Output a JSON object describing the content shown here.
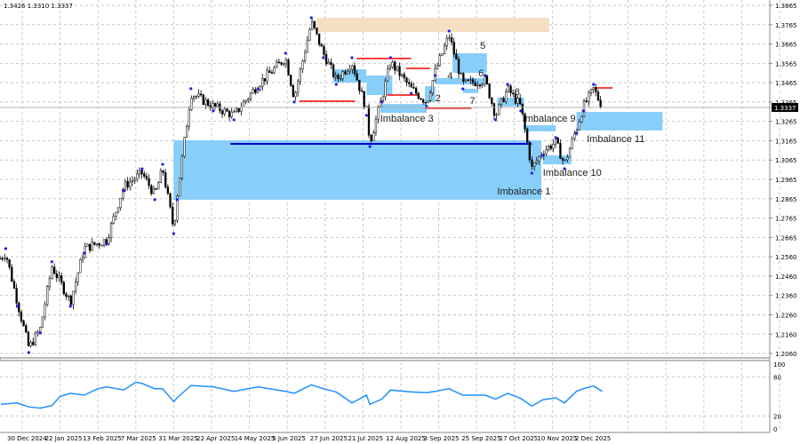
{
  "header": {
    "ohlc_text": "1.3426 1.3310 1.3337"
  },
  "chart_data": {
    "type": "candlestick",
    "current_price": "1.3337",
    "colors": {
      "candle": "#000000",
      "zone_blue": "#87cefa",
      "zone_tan": "#f5dfc2",
      "line_blue": "#0000cd",
      "line_red": "#ff0000",
      "fractal": "#1e1ee6",
      "indicator": "#1e90ff",
      "grid": "#c8c8c8"
    },
    "y_ticks": [
      "1.3865",
      "1.3765",
      "1.3665",
      "1.3565",
      "1.3465",
      "1.3365",
      "1.3265",
      "1.3165",
      "1.3065",
      "1.2965",
      "1.2865",
      "1.2765",
      "1.2665",
      "1.2560",
      "1.2460",
      "1.2360",
      "1.2260",
      "1.2160",
      "1.2060"
    ],
    "y_range": [
      1.206,
      1.3865
    ],
    "x_ticks": [
      {
        "label": "30 Dec 2024",
        "date": "2024-12-30"
      },
      {
        "label": "22 Jan 2025",
        "date": "2025-01-22"
      },
      {
        "label": "13 Feb 2025",
        "date": "2025-02-13"
      },
      {
        "label": "7 Mar 2025",
        "date": "2025-03-07"
      },
      {
        "label": "31 Mar 2025",
        "date": "2025-03-31"
      },
      {
        "label": "22 Apr 2025",
        "date": "2025-04-22"
      },
      {
        "label": "14 May 2025",
        "date": "2025-05-14"
      },
      {
        "label": "5 Jun 2025",
        "date": "2025-06-05"
      },
      {
        "label": "27 Jun 2025",
        "date": "2025-06-27"
      },
      {
        "label": "21 Jul 2025",
        "date": "2025-07-21"
      },
      {
        "label": "12 Aug 2025",
        "date": "2025-08-12"
      },
      {
        "label": "3 Sep 2025",
        "date": "2025-09-03"
      },
      {
        "label": "25 Sep 2025",
        "date": "2025-09-25"
      },
      {
        "label": "17 Oct 2025",
        "date": "2025-10-17"
      },
      {
        "label": "10 Nov 2025",
        "date": "2025-11-10"
      },
      {
        "label": "2 Dec 2025",
        "date": "2025-12-02"
      }
    ],
    "grid": true,
    "price_swings": [
      [
        "2024-12-17",
        1.2561
      ],
      [
        "2024-12-20",
        1.2584
      ],
      [
        "2024-12-27",
        1.2332
      ],
      [
        "2025-01-03",
        1.2093
      ],
      [
        "2025-01-10",
        1.2194
      ],
      [
        "2025-01-17",
        1.2516
      ],
      [
        "2025-01-28",
        1.2332
      ],
      [
        "2025-02-05",
        1.2607
      ],
      [
        "2025-02-18",
        1.2653
      ],
      [
        "2025-02-28",
        1.2929
      ],
      [
        "2025-03-11",
        1.2997
      ],
      [
        "2025-03-19",
        1.2883
      ],
      [
        "2025-03-24",
        1.302
      ],
      [
        "2025-03-31",
        1.2708
      ],
      [
        "2025-04-02",
        1.2883
      ],
      [
        "2025-04-10",
        1.3411
      ],
      [
        "2025-04-23",
        1.3342
      ],
      [
        "2025-05-05",
        1.3296
      ],
      [
        "2025-05-19",
        1.3456
      ],
      [
        "2025-06-04",
        1.3594
      ],
      [
        "2025-06-09",
        1.3388
      ],
      [
        "2025-06-19",
        1.3778
      ],
      [
        "2025-06-26",
        1.3617
      ],
      [
        "2025-07-04",
        1.3479
      ],
      [
        "2025-07-14",
        1.3571
      ],
      [
        "2025-07-23",
        1.3319
      ],
      [
        "2025-07-25",
        1.3158
      ],
      [
        "2025-08-01",
        1.3388
      ],
      [
        "2025-08-06",
        1.3571
      ],
      [
        "2025-08-18",
        1.3433
      ],
      [
        "2025-08-27",
        1.3365
      ],
      [
        "2025-09-01",
        1.3525
      ],
      [
        "2025-09-09",
        1.3709
      ],
      [
        "2025-09-17",
        1.3456
      ],
      [
        "2025-09-30",
        1.3479
      ],
      [
        "2025-10-06",
        1.3296
      ],
      [
        "2025-10-13",
        1.3433
      ],
      [
        "2025-10-21",
        1.3342
      ],
      [
        "2025-10-28",
        1.302
      ],
      [
        "2025-11-04",
        1.3112
      ],
      [
        "2025-11-12",
        1.3158
      ],
      [
        "2025-11-17",
        1.3043
      ],
      [
        "2025-11-24",
        1.3227
      ],
      [
        "2025-11-28",
        1.3342
      ],
      [
        "2025-12-04",
        1.3433
      ],
      [
        "2025-12-09",
        1.3337
      ]
    ],
    "zones": [
      {
        "kind": "tan",
        "from": "2025-06-22",
        "to": "2025-11-08",
        "top": 1.3801,
        "bottom": 1.3727
      },
      {
        "kind": "blue",
        "from": "2025-03-31",
        "to": "2025-11-03",
        "top": 1.3167,
        "bottom": 1.286
      },
      {
        "kind": "blue",
        "from": "2025-07-02",
        "to": "2025-07-23",
        "top": 1.3534,
        "bottom": 1.3466
      },
      {
        "kind": "blue",
        "from": "2025-07-23",
        "to": "2025-08-07",
        "top": 1.3502,
        "bottom": 1.3401
      },
      {
        "kind": "blue",
        "from": "2025-07-31",
        "to": "2025-08-27",
        "top": 1.3355,
        "bottom": 1.3309
      },
      {
        "kind": "blue",
        "from": "2025-08-26",
        "to": "2025-09-01",
        "top": 1.3447,
        "bottom": 1.3365
      },
      {
        "kind": "blue",
        "from": "2025-09-01",
        "to": "2025-10-01",
        "top": 1.3489,
        "bottom": 1.3456
      },
      {
        "kind": "blue",
        "from": "2025-09-11",
        "to": "2025-10-01",
        "top": 1.3617,
        "bottom": 1.3516
      },
      {
        "kind": "blue",
        "from": "2025-09-17",
        "to": "2025-09-26",
        "top": 1.3434,
        "bottom": 1.3411
      },
      {
        "kind": "blue",
        "from": "2025-10-07",
        "to": "2025-10-23",
        "top": 1.3388,
        "bottom": 1.3342
      },
      {
        "kind": "blue",
        "from": "2025-10-23",
        "to": "2025-11-12",
        "top": 1.3245,
        "bottom": 1.3213
      },
      {
        "kind": "blue",
        "from": "2025-11-04",
        "to": "2025-11-21",
        "top": 1.3089,
        "bottom": 1.3043
      },
      {
        "kind": "blue",
        "from": "2025-11-24",
        "to": "2026-01-13",
        "top": 1.3314,
        "bottom": 1.3218
      }
    ],
    "levels": [
      {
        "color": "blue",
        "from": "2025-05-03",
        "to": "2025-10-28",
        "price": 1.3149
      },
      {
        "color": "red",
        "from": "2025-06-12",
        "to": "2025-07-16",
        "price": 1.3369
      },
      {
        "color": "red",
        "from": "2025-07-17",
        "to": "2025-08-18",
        "price": 1.359
      },
      {
        "color": "red",
        "from": "2025-08-15",
        "to": "2025-08-29",
        "price": 1.3539
      },
      {
        "color": "red",
        "from": "2025-08-04",
        "to": "2025-08-22",
        "price": 1.3401
      },
      {
        "color": "red",
        "from": "2025-08-26",
        "to": "2025-09-22",
        "price": 1.3333
      },
      {
        "color": "red",
        "from": "2025-12-04",
        "to": "2025-12-15",
        "price": 1.3438
      }
    ],
    "annotations": [
      {
        "text": "Imbalance 1",
        "date": "2025-10-07",
        "price": 1.2906
      },
      {
        "text": "Imbalance 3",
        "date": "2025-07-31",
        "price": 1.3282
      },
      {
        "text": "2",
        "date": "2025-09-01",
        "price": 1.3388
      },
      {
        "text": "4",
        "date": "2025-09-08",
        "price": 1.3502
      },
      {
        "text": "5",
        "date": "2025-09-27",
        "price": 1.3658
      },
      {
        "text": "6",
        "date": "2025-09-26",
        "price": 1.3516
      },
      {
        "text": "7",
        "date": "2025-09-21",
        "price": 1.3374
      },
      {
        "text": "8",
        "date": "2025-10-17",
        "price": 1.342
      },
      {
        "text": "Imbalance 9",
        "date": "2025-10-22",
        "price": 1.3282
      },
      {
        "text": "Imbalance 10",
        "date": "2025-11-04",
        "price": 1.3002
      },
      {
        "text": "Imbalance 11",
        "date": "2025-11-30",
        "price": 1.3176
      }
    ],
    "indicator": {
      "y_ticks": [
        "100",
        "80",
        "20",
        "0"
      ],
      "y_range": [
        0,
        100
      ],
      "values": [
        [
          "2024-12-17",
          38
        ],
        [
          "2024-12-27",
          40
        ],
        [
          "2025-01-03",
          34
        ],
        [
          "2025-01-10",
          32
        ],
        [
          "2025-01-17",
          36
        ],
        [
          "2025-01-22",
          50
        ],
        [
          "2025-01-28",
          55
        ],
        [
          "2025-02-05",
          52
        ],
        [
          "2025-02-13",
          62
        ],
        [
          "2025-02-18",
          65
        ],
        [
          "2025-02-28",
          60
        ],
        [
          "2025-03-07",
          72
        ],
        [
          "2025-03-11",
          70
        ],
        [
          "2025-03-19",
          62
        ],
        [
          "2025-03-24",
          62
        ],
        [
          "2025-03-31",
          42
        ],
        [
          "2025-04-02",
          48
        ],
        [
          "2025-04-10",
          67
        ],
        [
          "2025-04-23",
          65
        ],
        [
          "2025-05-05",
          58
        ],
        [
          "2025-05-19",
          65
        ],
        [
          "2025-06-04",
          58
        ],
        [
          "2025-06-09",
          55
        ],
        [
          "2025-06-19",
          68
        ],
        [
          "2025-06-26",
          62
        ],
        [
          "2025-07-04",
          57
        ],
        [
          "2025-07-14",
          40
        ],
        [
          "2025-07-23",
          52
        ],
        [
          "2025-07-25",
          38
        ],
        [
          "2025-08-01",
          46
        ],
        [
          "2025-08-06",
          60
        ],
        [
          "2025-08-18",
          57
        ],
        [
          "2025-08-27",
          56
        ],
        [
          "2025-09-01",
          58
        ],
        [
          "2025-09-09",
          62
        ],
        [
          "2025-09-17",
          52
        ],
        [
          "2025-09-30",
          52
        ],
        [
          "2025-10-06",
          46
        ],
        [
          "2025-10-13",
          55
        ],
        [
          "2025-10-21",
          47
        ],
        [
          "2025-10-28",
          35
        ],
        [
          "2025-11-04",
          45
        ],
        [
          "2025-11-12",
          48
        ],
        [
          "2025-11-17",
          40
        ],
        [
          "2025-11-24",
          58
        ],
        [
          "2025-11-28",
          62
        ],
        [
          "2025-12-04",
          66
        ],
        [
          "2025-12-09",
          58
        ]
      ]
    }
  }
}
